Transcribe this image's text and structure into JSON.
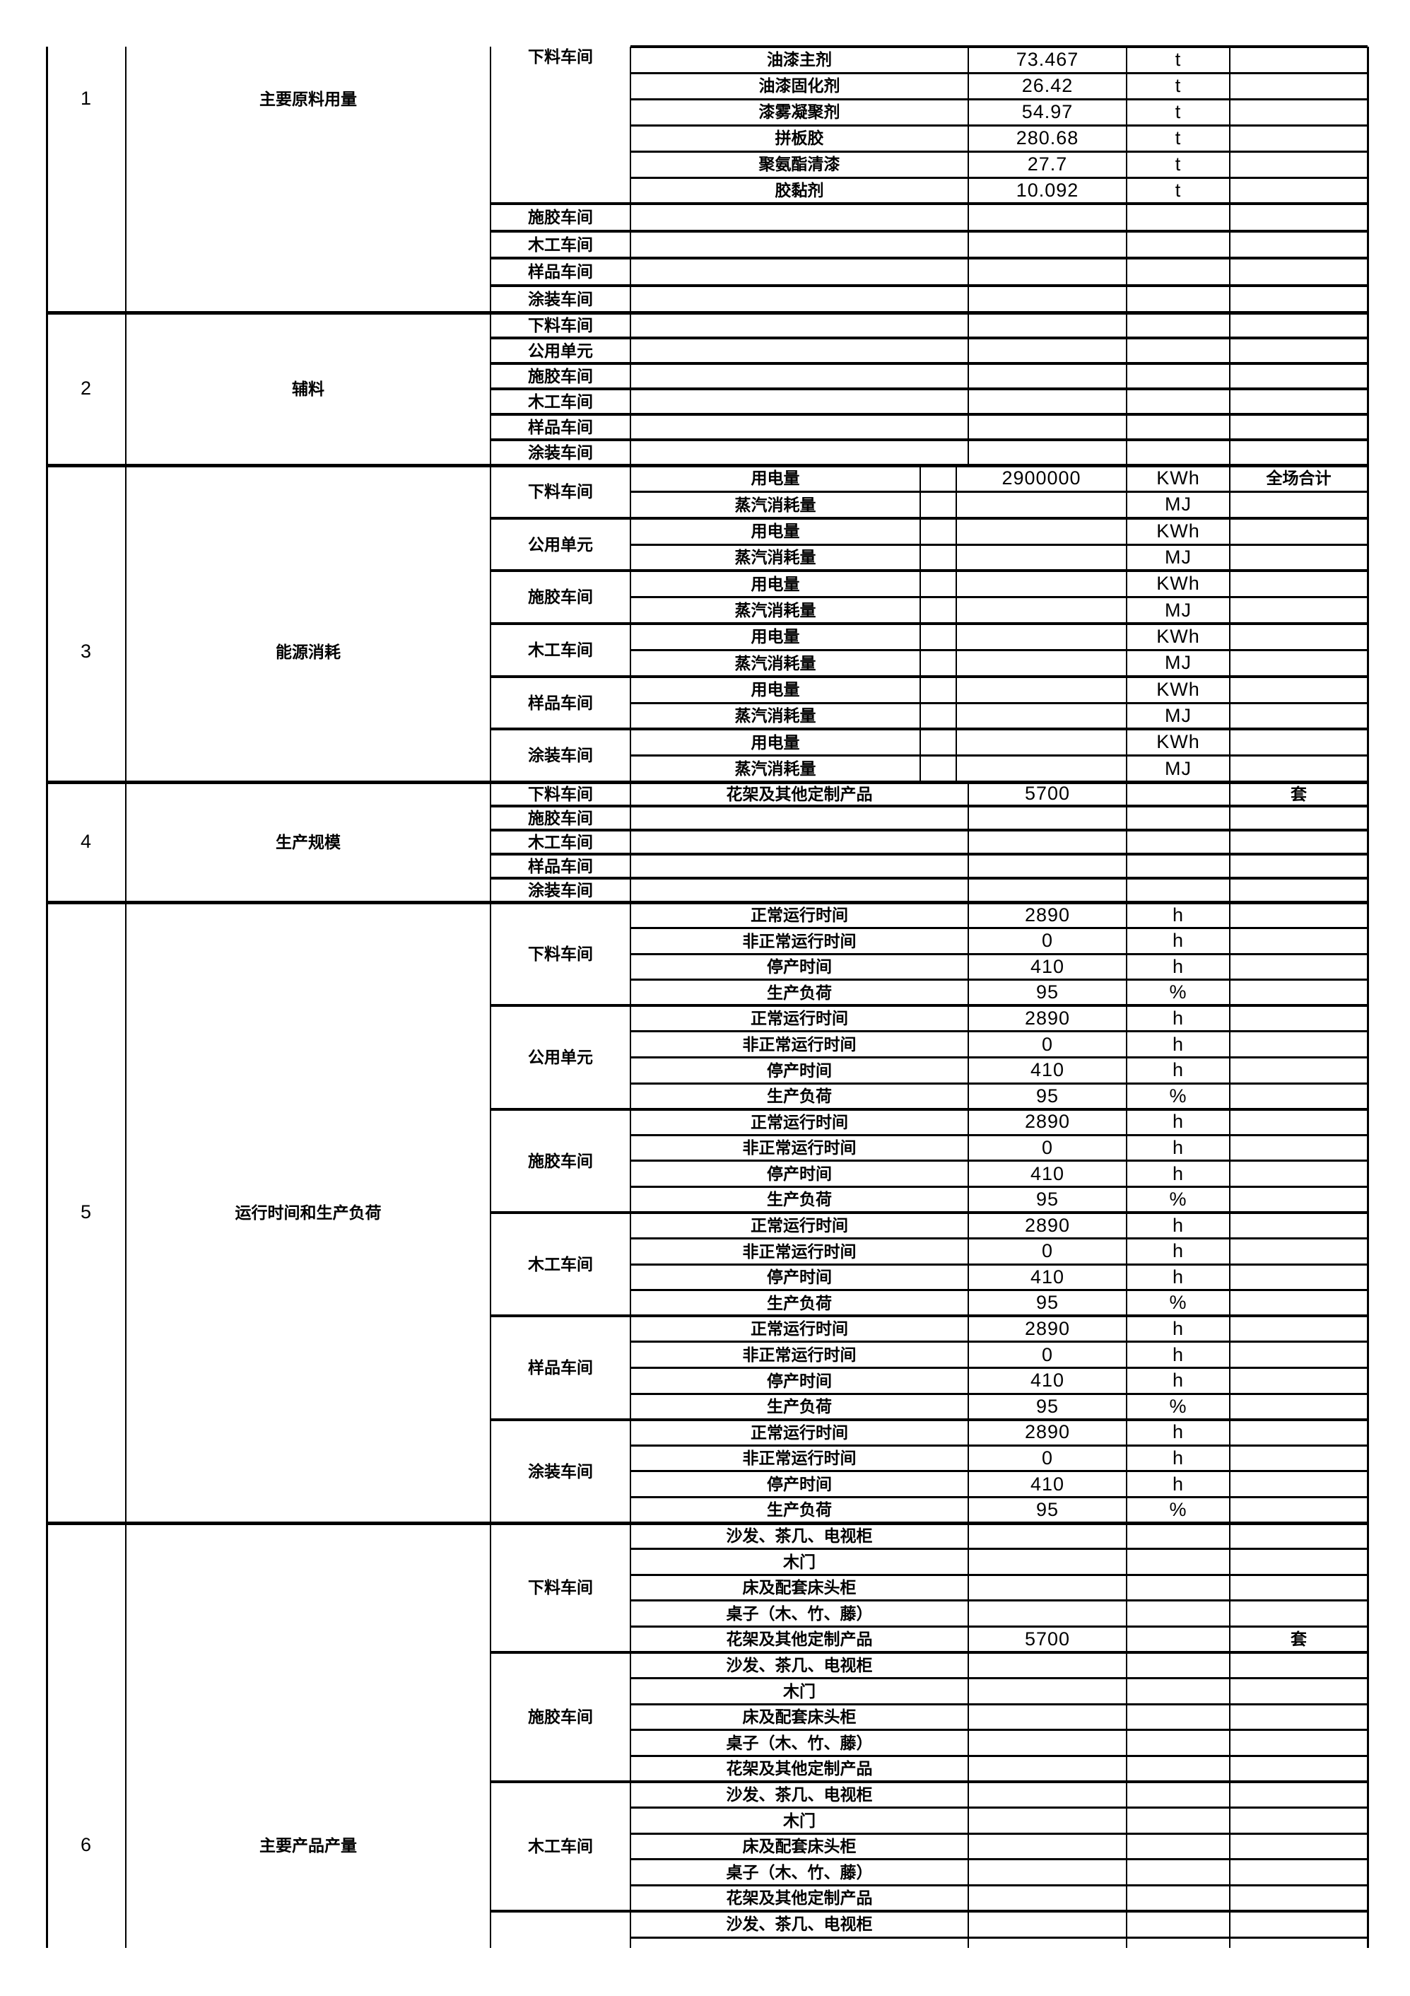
{
  "page": {
    "background_color": "#ffffff",
    "text_color": "#000000",
    "grid_color": "#000000"
  },
  "table": {
    "sections": [
      {
        "no": "1",
        "category": "主要原料用量",
        "blocks": [
          {
            "workshop": "下料车间",
            "rows": [
              [
                "油漆主剂",
                "73.467",
                "t",
                ""
              ],
              [
                "油漆固化剂",
                "26.42",
                "t",
                ""
              ],
              [
                "漆雾凝聚剂",
                "54.97",
                "t",
                ""
              ],
              [
                "拼板胶",
                "280.68",
                "t",
                ""
              ],
              [
                "聚氨酯清漆",
                "27.7",
                "t",
                ""
              ],
              [
                "胶黏剂",
                "10.092",
                "t",
                ""
              ]
            ]
          },
          {
            "workshop": "施胶车间",
            "rows": [
              [
                "",
                "",
                "",
                ""
              ]
            ]
          },
          {
            "workshop": "木工车间",
            "rows": [
              [
                "",
                "",
                "",
                ""
              ]
            ]
          },
          {
            "workshop": "样品车间",
            "rows": [
              [
                "",
                "",
                "",
                ""
              ]
            ]
          },
          {
            "workshop": "涂装车间",
            "rows": [
              [
                "",
                "",
                "",
                ""
              ]
            ]
          }
        ]
      },
      {
        "no": "2",
        "category": "辅料",
        "blocks": [
          {
            "workshop": "下料车间",
            "rows": [
              [
                "",
                "",
                "",
                ""
              ]
            ]
          },
          {
            "workshop": "公用单元",
            "rows": [
              [
                "",
                "",
                "",
                ""
              ]
            ]
          },
          {
            "workshop": "施胶车间",
            "rows": [
              [
                "",
                "",
                "",
                ""
              ]
            ]
          },
          {
            "workshop": "木工车间",
            "rows": [
              [
                "",
                "",
                "",
                ""
              ]
            ]
          },
          {
            "workshop": "样品车间",
            "rows": [
              [
                "",
                "",
                "",
                ""
              ]
            ]
          },
          {
            "workshop": "涂装车间",
            "rows": [
              [
                "",
                "",
                "",
                ""
              ]
            ]
          }
        ]
      },
      {
        "no": "3",
        "category": "能源消耗",
        "blocks": [
          {
            "workshop": "下料车间",
            "rows": [
              [
                "用电量",
                "2900000",
                "KWh",
                "全场合计"
              ],
              [
                "蒸汽消耗量",
                "",
                "MJ",
                ""
              ]
            ]
          },
          {
            "workshop": "公用单元",
            "rows": [
              [
                "用电量",
                "",
                "KWh",
                ""
              ],
              [
                "蒸汽消耗量",
                "",
                "MJ",
                ""
              ]
            ]
          },
          {
            "workshop": "施胶车间",
            "rows": [
              [
                "用电量",
                "",
                "KWh",
                ""
              ],
              [
                "蒸汽消耗量",
                "",
                "MJ",
                ""
              ]
            ]
          },
          {
            "workshop": "木工车间",
            "rows": [
              [
                "用电量",
                "",
                "KWh",
                ""
              ],
              [
                "蒸汽消耗量",
                "",
                "MJ",
                ""
              ]
            ]
          },
          {
            "workshop": "样品车间",
            "rows": [
              [
                "用电量",
                "",
                "KWh",
                ""
              ],
              [
                "蒸汽消耗量",
                "",
                "MJ",
                ""
              ]
            ]
          },
          {
            "workshop": "涂装车间",
            "rows": [
              [
                "用电量",
                "",
                "KWh",
                ""
              ],
              [
                "蒸汽消耗量",
                "",
                "MJ",
                ""
              ]
            ]
          }
        ]
      },
      {
        "no": "4",
        "category": "生产规模",
        "blocks": [
          {
            "workshop": "下料车间",
            "rows": [
              [
                "花架及其他定制产品",
                "5700",
                "",
                "套"
              ]
            ]
          },
          {
            "workshop": "施胶车间",
            "rows": [
              [
                "",
                "",
                "",
                ""
              ]
            ]
          },
          {
            "workshop": "木工车间",
            "rows": [
              [
                "",
                "",
                "",
                ""
              ]
            ]
          },
          {
            "workshop": "样品车间",
            "rows": [
              [
                "",
                "",
                "",
                ""
              ]
            ]
          },
          {
            "workshop": "涂装车间",
            "rows": [
              [
                "",
                "",
                "",
                ""
              ]
            ]
          }
        ]
      },
      {
        "no": "5",
        "category": "运行时间和生产负荷",
        "blocks": [
          {
            "workshop": "下料车间",
            "rows": [
              [
                "正常运行时间",
                "2890",
                "h",
                ""
              ],
              [
                "非正常运行时间",
                "0",
                "h",
                ""
              ],
              [
                "停产时间",
                "410",
                "h",
                ""
              ],
              [
                "生产负荷",
                "95",
                "%",
                ""
              ]
            ]
          },
          {
            "workshop": "公用单元",
            "rows": [
              [
                "正常运行时间",
                "2890",
                "h",
                ""
              ],
              [
                "非正常运行时间",
                "0",
                "h",
                ""
              ],
              [
                "停产时间",
                "410",
                "h",
                ""
              ],
              [
                "生产负荷",
                "95",
                "%",
                ""
              ]
            ]
          },
          {
            "workshop": "施胶车间",
            "rows": [
              [
                "正常运行时间",
                "2890",
                "h",
                ""
              ],
              [
                "非正常运行时间",
                "0",
                "h",
                ""
              ],
              [
                "停产时间",
                "410",
                "h",
                ""
              ],
              [
                "生产负荷",
                "95",
                "%",
                ""
              ]
            ]
          },
          {
            "workshop": "木工车间",
            "rows": [
              [
                "正常运行时间",
                "2890",
                "h",
                ""
              ],
              [
                "非正常运行时间",
                "0",
                "h",
                ""
              ],
              [
                "停产时间",
                "410",
                "h",
                ""
              ],
              [
                "生产负荷",
                "95",
                "%",
                ""
              ]
            ]
          },
          {
            "workshop": "样品车间",
            "rows": [
              [
                "正常运行时间",
                "2890",
                "h",
                ""
              ],
              [
                "非正常运行时间",
                "0",
                "h",
                ""
              ],
              [
                "停产时间",
                "410",
                "h",
                ""
              ],
              [
                "生产负荷",
                "95",
                "%",
                ""
              ]
            ]
          },
          {
            "workshop": "涂装车间",
            "rows": [
              [
                "正常运行时间",
                "2890",
                "h",
                ""
              ],
              [
                "非正常运行时间",
                "0",
                "h",
                ""
              ],
              [
                "停产时间",
                "410",
                "h",
                ""
              ],
              [
                "生产负荷",
                "95",
                "%",
                ""
              ]
            ]
          }
        ]
      },
      {
        "no": "6",
        "category": "主要产品产量",
        "blocks": [
          {
            "workshop": "下料车间",
            "rows": [
              [
                "沙发、茶几、电视柜",
                "",
                "",
                ""
              ],
              [
                "木门",
                "",
                "",
                ""
              ],
              [
                "床及配套床头柜",
                "",
                "",
                ""
              ],
              [
                "桌子（木、竹、藤）",
                "",
                "",
                ""
              ],
              [
                "花架及其他定制产品",
                "5700",
                "",
                "套"
              ]
            ]
          },
          {
            "workshop": "施胶车间",
            "rows": [
              [
                "沙发、茶几、电视柜",
                "",
                "",
                ""
              ],
              [
                "木门",
                "",
                "",
                ""
              ],
              [
                "床及配套床头柜",
                "",
                "",
                ""
              ],
              [
                "桌子（木、竹、藤）",
                "",
                "",
                ""
              ],
              [
                "花架及其他定制产品",
                "",
                "",
                ""
              ]
            ]
          },
          {
            "workshop": "木工车间",
            "rows": [
              [
                "沙发、茶几、电视柜",
                "",
                "",
                ""
              ],
              [
                "木门",
                "",
                "",
                ""
              ],
              [
                "床及配套床头柜",
                "",
                "",
                ""
              ],
              [
                "桌子（木、竹、藤）",
                "",
                "",
                ""
              ],
              [
                "花架及其他定制产品",
                "",
                "",
                ""
              ]
            ]
          },
          {
            "workshop": "",
            "rows": [
              [
                "沙发、茶几、电视柜",
                "",
                "",
                ""
              ]
            ]
          }
        ]
      }
    ]
  }
}
